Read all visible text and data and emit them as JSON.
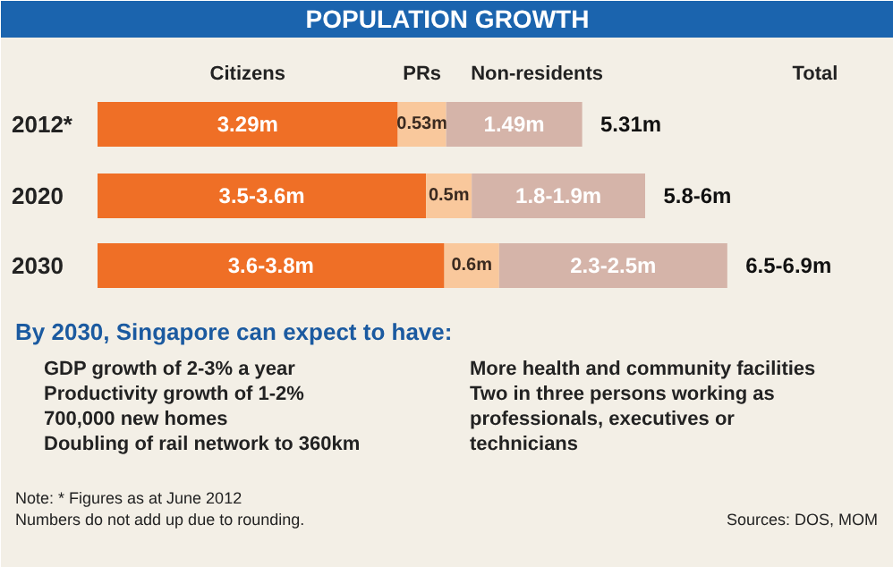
{
  "chart_data": {
    "type": "bar",
    "orientation": "horizontal",
    "stacked": true,
    "title": "POPULATION GROWTH",
    "categories": [
      "2012*",
      "2020",
      "2030"
    ],
    "series": [
      {
        "name": "Citizens",
        "color": "#ef6f26",
        "values": [
          3.29,
          3.6,
          3.8
        ],
        "value_labels": [
          "3.29m",
          "3.5-3.6m",
          "3.6-3.8m"
        ]
      },
      {
        "name": "PRs",
        "color": "#f9c89c",
        "values": [
          0.53,
          0.5,
          0.6
        ],
        "value_labels": [
          "0.53m",
          "0.5m",
          "0.6m"
        ]
      },
      {
        "name": "Non-residents",
        "color": "#d5b4a9",
        "values": [
          1.49,
          1.9,
          2.5
        ],
        "value_labels": [
          "1.49m",
          "1.8-1.9m",
          "2.3-2.5m"
        ]
      }
    ],
    "totals": [
      "5.31m",
      "5.8-6m",
      "6.5-6.9m"
    ],
    "legend": "top",
    "annotations": [
      "Total",
      "By 2030, Singapore can expect to have:",
      "GDP growth of 2-3% a year",
      "Productivity growth of 1-2%",
      "700,000 new homes",
      "Doubling of rail network to 360km",
      "More health and community facilities",
      "Two in three persons working as professionals, executives or technicians",
      "Note: * Figures as at June 2012",
      "Numbers do not add up due to rounding.",
      "Sources: DOS, MOM"
    ]
  }
}
